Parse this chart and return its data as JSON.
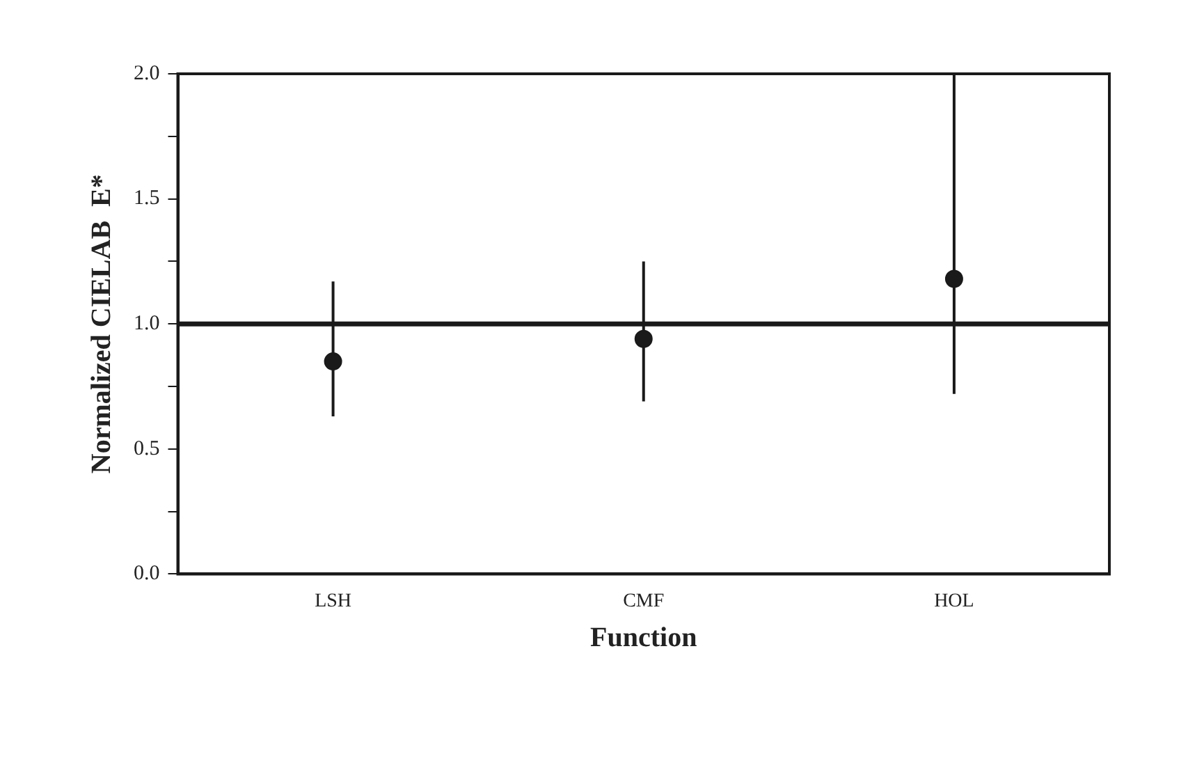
{
  "chart_data": {
    "type": "scatter",
    "xlabel": "Function",
    "ylabel": "Normalized CIELAB  E*",
    "categories": [
      "LSH",
      "CMF",
      "HOL"
    ],
    "series": [
      {
        "color": "#1a1a1a",
        "values": [
          0.85,
          0.94,
          1.18
        ],
        "errors": [
          [
            0.63,
            1.17
          ],
          [
            0.69,
            1.25
          ],
          [
            0.72,
            2.0
          ]
        ]
      }
    ],
    "ylim": [
      0,
      2.0
    ],
    "yticks": [
      {
        "value": 0,
        "label": "0.0"
      },
      {
        "value": 0.25,
        "label": null
      },
      {
        "value": 0.5,
        "label": "0.5"
      },
      {
        "value": 0.75,
        "label": null
      },
      {
        "value": 1.0,
        "label": "1.0"
      },
      {
        "value": 1.25,
        "label": null
      },
      {
        "value": 1.5,
        "label": "1.5"
      },
      {
        "value": 1.75,
        "label": null
      },
      {
        "value": 2.0,
        "label": "2.0"
      }
    ],
    "ref_lines": [
      {
        "axis": "y",
        "value": 1.0,
        "color": "#1a1a1a"
      }
    ],
    "marker": "circle",
    "grid": false,
    "legend": false
  }
}
